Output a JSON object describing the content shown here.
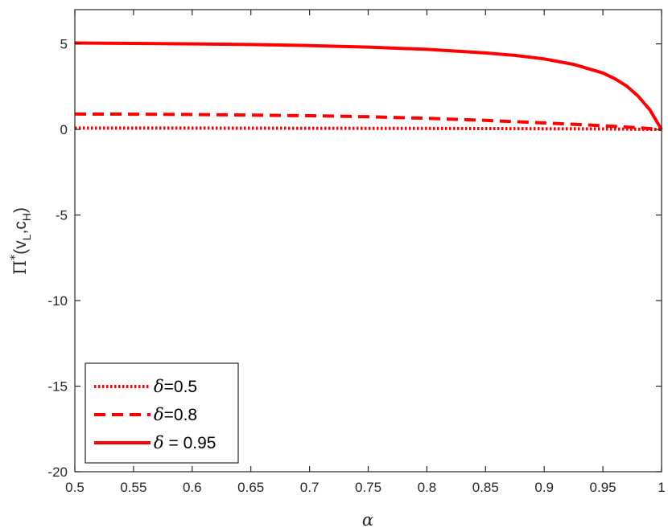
{
  "chart_data": {
    "type": "line",
    "xlabel": "α",
    "ylabel": {
      "base": "Π",
      "superscript": "*",
      "open": "(v",
      "sub1": "L",
      "mid": ",c",
      "sub2": "H",
      "close": ")"
    },
    "xlim": [
      0.5,
      1
    ],
    "ylim": [
      -20,
      7
    ],
    "xticks": [
      "0.5",
      "0.55",
      "0.6",
      "0.65",
      "0.7",
      "0.75",
      "0.8",
      "0.85",
      "0.9",
      "0.95",
      "1"
    ],
    "yticks": [
      "-20",
      "-15",
      "-10",
      "-5",
      "0",
      "5"
    ],
    "grid": false,
    "legend_position": "bottom-left",
    "series": [
      {
        "name": "=0.5",
        "symbol": "δ",
        "style": "dotted",
        "color": "#ff0000",
        "x": [
          0.5,
          0.6,
          0.7,
          0.8,
          0.9,
          0.95,
          1.0
        ],
        "y": [
          0.08,
          0.08,
          0.07,
          0.06,
          0.04,
          0.03,
          0.0
        ]
      },
      {
        "name": "=0.8",
        "symbol": "δ",
        "style": "dashed",
        "color": "#ff0000",
        "x": [
          0.5,
          0.55,
          0.6,
          0.65,
          0.7,
          0.75,
          0.8,
          0.85,
          0.9,
          0.95,
          0.975,
          1.0
        ],
        "y": [
          0.9,
          0.89,
          0.87,
          0.84,
          0.8,
          0.74,
          0.65,
          0.53,
          0.38,
          0.22,
          0.12,
          0.0
        ]
      },
      {
        "name": " = 0.95",
        "symbol": "δ",
        "style": "solid",
        "color": "#ff0000",
        "x": [
          0.5,
          0.55,
          0.6,
          0.65,
          0.7,
          0.75,
          0.8,
          0.85,
          0.875,
          0.9,
          0.925,
          0.95,
          0.96,
          0.97,
          0.98,
          0.99,
          1.0
        ],
        "y": [
          5.05,
          5.03,
          5.0,
          4.96,
          4.9,
          4.81,
          4.68,
          4.47,
          4.33,
          4.12,
          3.8,
          3.3,
          2.97,
          2.55,
          1.95,
          1.15,
          0.0
        ]
      }
    ]
  }
}
